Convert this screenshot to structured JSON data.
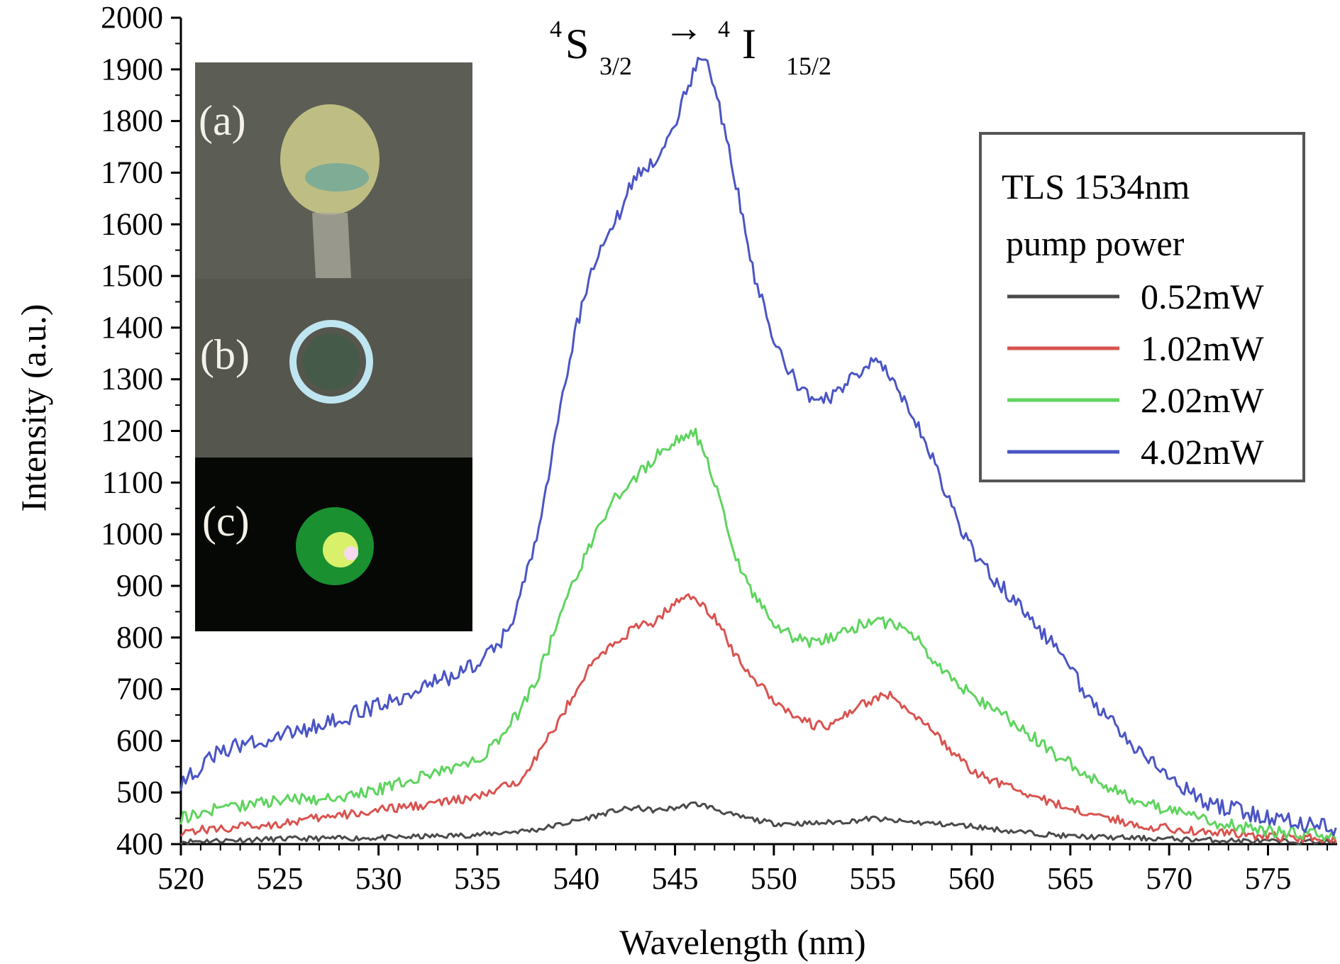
{
  "chart_data": {
    "type": "line",
    "title": "",
    "xlabel": "Wavelength (nm)",
    "ylabel": "Intensity (a.u.)",
    "xlim": [
      520,
      578.5
    ],
    "ylim": [
      400,
      2000
    ],
    "xticks": [
      520,
      525,
      530,
      535,
      540,
      545,
      550,
      555,
      560,
      565,
      570,
      575
    ],
    "yticks": [
      400,
      500,
      600,
      700,
      800,
      900,
      1000,
      1100,
      1200,
      1300,
      1400,
      1500,
      1600,
      1700,
      1800,
      1900,
      2000
    ],
    "grid": false,
    "annotation": {
      "transition": {
        "upper_sup": "4",
        "upper_letter": "S",
        "upper_sub": "3/2",
        "arrow": "→",
        "lower_sup": "4",
        "lower_letter": "I",
        "lower_sub": "15/2"
      }
    },
    "legend": {
      "position": "top-right",
      "title_line1": "TLS 1534nm",
      "title_line2": "pump power"
    },
    "insets": [
      {
        "label": "(a)",
        "description_color": "#5a5a52"
      },
      {
        "label": "(b)",
        "description_color": "#52524a"
      },
      {
        "label": "(c)",
        "description_color": "#060806"
      }
    ],
    "series": [
      {
        "name": "0.52mW",
        "color": "#4a4a4a",
        "x": [
          520,
          525,
          530,
          535,
          538,
          540,
          542,
          543,
          544,
          545,
          546,
          546.5,
          548,
          550,
          552,
          554,
          555,
          556,
          558,
          560,
          562,
          565,
          570,
          575,
          578.5
        ],
        "y": [
          405,
          410,
          412,
          418,
          428,
          445,
          465,
          470,
          465,
          470,
          478,
          475,
          455,
          440,
          440,
          445,
          450,
          445,
          440,
          435,
          425,
          415,
          410,
          405,
          405
        ]
      },
      {
        "name": "1.02mW",
        "color": "#d9534f",
        "x": [
          520,
          522,
          525,
          528,
          530,
          533,
          535,
          537,
          538,
          539,
          540,
          541,
          542,
          543,
          544,
          545,
          546,
          546.5,
          547,
          548,
          549,
          550,
          551,
          552,
          553,
          554,
          555,
          556,
          557,
          558,
          559,
          560,
          562,
          564,
          566,
          568,
          570,
          575,
          578.5
        ],
        "y": [
          425,
          430,
          440,
          455,
          465,
          480,
          490,
          520,
          570,
          630,
          700,
          760,
          790,
          820,
          830,
          870,
          880,
          860,
          840,
          770,
          720,
          680,
          650,
          630,
          630,
          660,
          680,
          690,
          650,
          620,
          580,
          540,
          510,
          480,
          460,
          440,
          430,
          415,
          410
        ]
      },
      {
        "name": "2.02mW",
        "color": "#5ed45e",
        "x": [
          520,
          522,
          525,
          528,
          530,
          533,
          535,
          536,
          537,
          538,
          539,
          540,
          541,
          542,
          543,
          544,
          545,
          546,
          547,
          548,
          549,
          550,
          551,
          552,
          553,
          554,
          555,
          556,
          557,
          558,
          559,
          560,
          562,
          564,
          566,
          568,
          570,
          572,
          575,
          578.5
        ],
        "y": [
          450,
          470,
          485,
          490,
          505,
          540,
          560,
          600,
          650,
          720,
          820,
          920,
          1000,
          1070,
          1110,
          1150,
          1180,
          1200,
          1100,
          960,
          880,
          830,
          800,
          790,
          800,
          820,
          830,
          825,
          810,
          760,
          720,
          690,
          640,
          580,
          530,
          490,
          465,
          445,
          425,
          415
        ]
      },
      {
        "name": "4.02mW",
        "color": "#4a55c4",
        "x": [
          520,
          522,
          525,
          528,
          530,
          532,
          534,
          535,
          536,
          537,
          538,
          539,
          540,
          541,
          542,
          543,
          544,
          545,
          546,
          546.5,
          547,
          548,
          549,
          550,
          551,
          552,
          553,
          554,
          555,
          556,
          557,
          558,
          559,
          560,
          561,
          562,
          563,
          564,
          565,
          566,
          568,
          570,
          572,
          575,
          578.5
        ],
        "y": [
          520,
          580,
          610,
          640,
          670,
          700,
          730,
          750,
          780,
          850,
          1000,
          1200,
          1400,
          1530,
          1610,
          1690,
          1730,
          1800,
          1900,
          1920,
          1860,
          1700,
          1500,
          1380,
          1300,
          1260,
          1270,
          1300,
          1340,
          1310,
          1230,
          1150,
          1050,
          970,
          920,
          880,
          830,
          790,
          740,
          680,
          600,
          530,
          480,
          450,
          430
        ]
      }
    ]
  }
}
